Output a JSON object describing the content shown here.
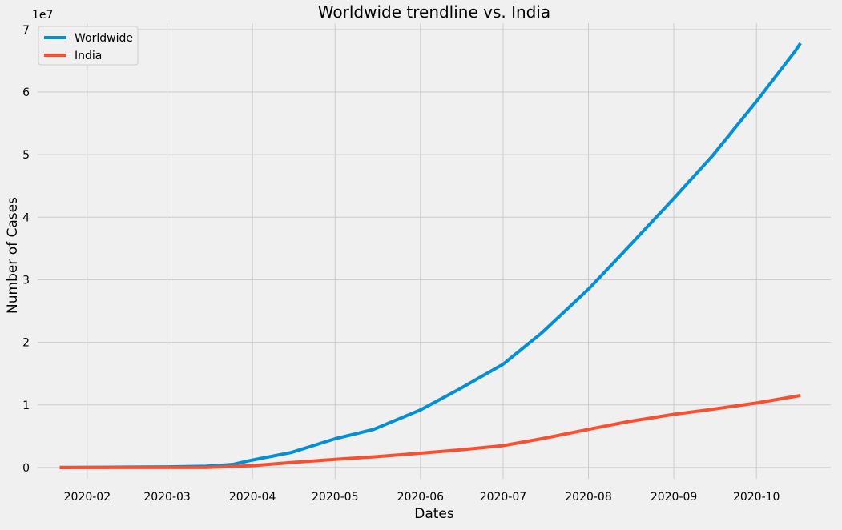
{
  "chart_data": {
    "type": "line",
    "title": "Worldwide trendline vs. India",
    "xlabel": "Dates",
    "ylabel": "Number of Cases",
    "y_offset_label": "1e7",
    "xlim": [
      "2020-01-14",
      "2020-10-28"
    ],
    "ylim": [
      -1800000,
      71000000
    ],
    "grid": true,
    "legend_placement": "top-left",
    "x_ticks": [
      "2020-02-01",
      "2020-03-01",
      "2020-04-01",
      "2020-05-01",
      "2020-06-01",
      "2020-07-01",
      "2020-08-01",
      "2020-09-01",
      "2020-10-01"
    ],
    "x_tick_labels": [
      "2020-02",
      "2020-03",
      "2020-04",
      "2020-05",
      "2020-06",
      "2020-07",
      "2020-08",
      "2020-09",
      "2020-10"
    ],
    "y_ticks": [
      0,
      10000000,
      20000000,
      30000000,
      40000000,
      50000000,
      60000000,
      70000000
    ],
    "y_tick_labels": [
      "0",
      "1",
      "2",
      "3",
      "4",
      "5",
      "6",
      "7"
    ],
    "series": [
      {
        "name": "Worldwide",
        "color": "#008fd5",
        "x": [
          "2020-01-22",
          "2020-02-15",
          "2020-03-01",
          "2020-03-15",
          "2020-03-25",
          "2020-04-01",
          "2020-04-15",
          "2020-05-01",
          "2020-05-15",
          "2020-06-01",
          "2020-06-15",
          "2020-07-01",
          "2020-07-15",
          "2020-08-01",
          "2020-08-15",
          "2020-09-01",
          "2020-09-15",
          "2020-10-01",
          "2020-10-15",
          "2020-10-17"
        ],
        "y": [
          0,
          70000,
          100000,
          200000,
          500000,
          1200000,
          2400000,
          4600000,
          6100000,
          9200000,
          12500000,
          16500000,
          21500000,
          28500000,
          35000000,
          43000000,
          49800000,
          58500000,
          66500000,
          67800000
        ]
      },
      {
        "name": "India",
        "color": "#fc4f30",
        "x": [
          "2020-01-22",
          "2020-03-15",
          "2020-04-01",
          "2020-04-15",
          "2020-05-01",
          "2020-05-15",
          "2020-06-01",
          "2020-06-15",
          "2020-07-01",
          "2020-07-15",
          "2020-08-01",
          "2020-08-15",
          "2020-09-01",
          "2020-09-15",
          "2020-10-01",
          "2020-10-17"
        ],
        "y": [
          0,
          100,
          300000,
          800000,
          1300000,
          1700000,
          2300000,
          2800000,
          3500000,
          4600000,
          6100000,
          7300000,
          8500000,
          9300000,
          10300000,
          11500000
        ]
      }
    ]
  }
}
